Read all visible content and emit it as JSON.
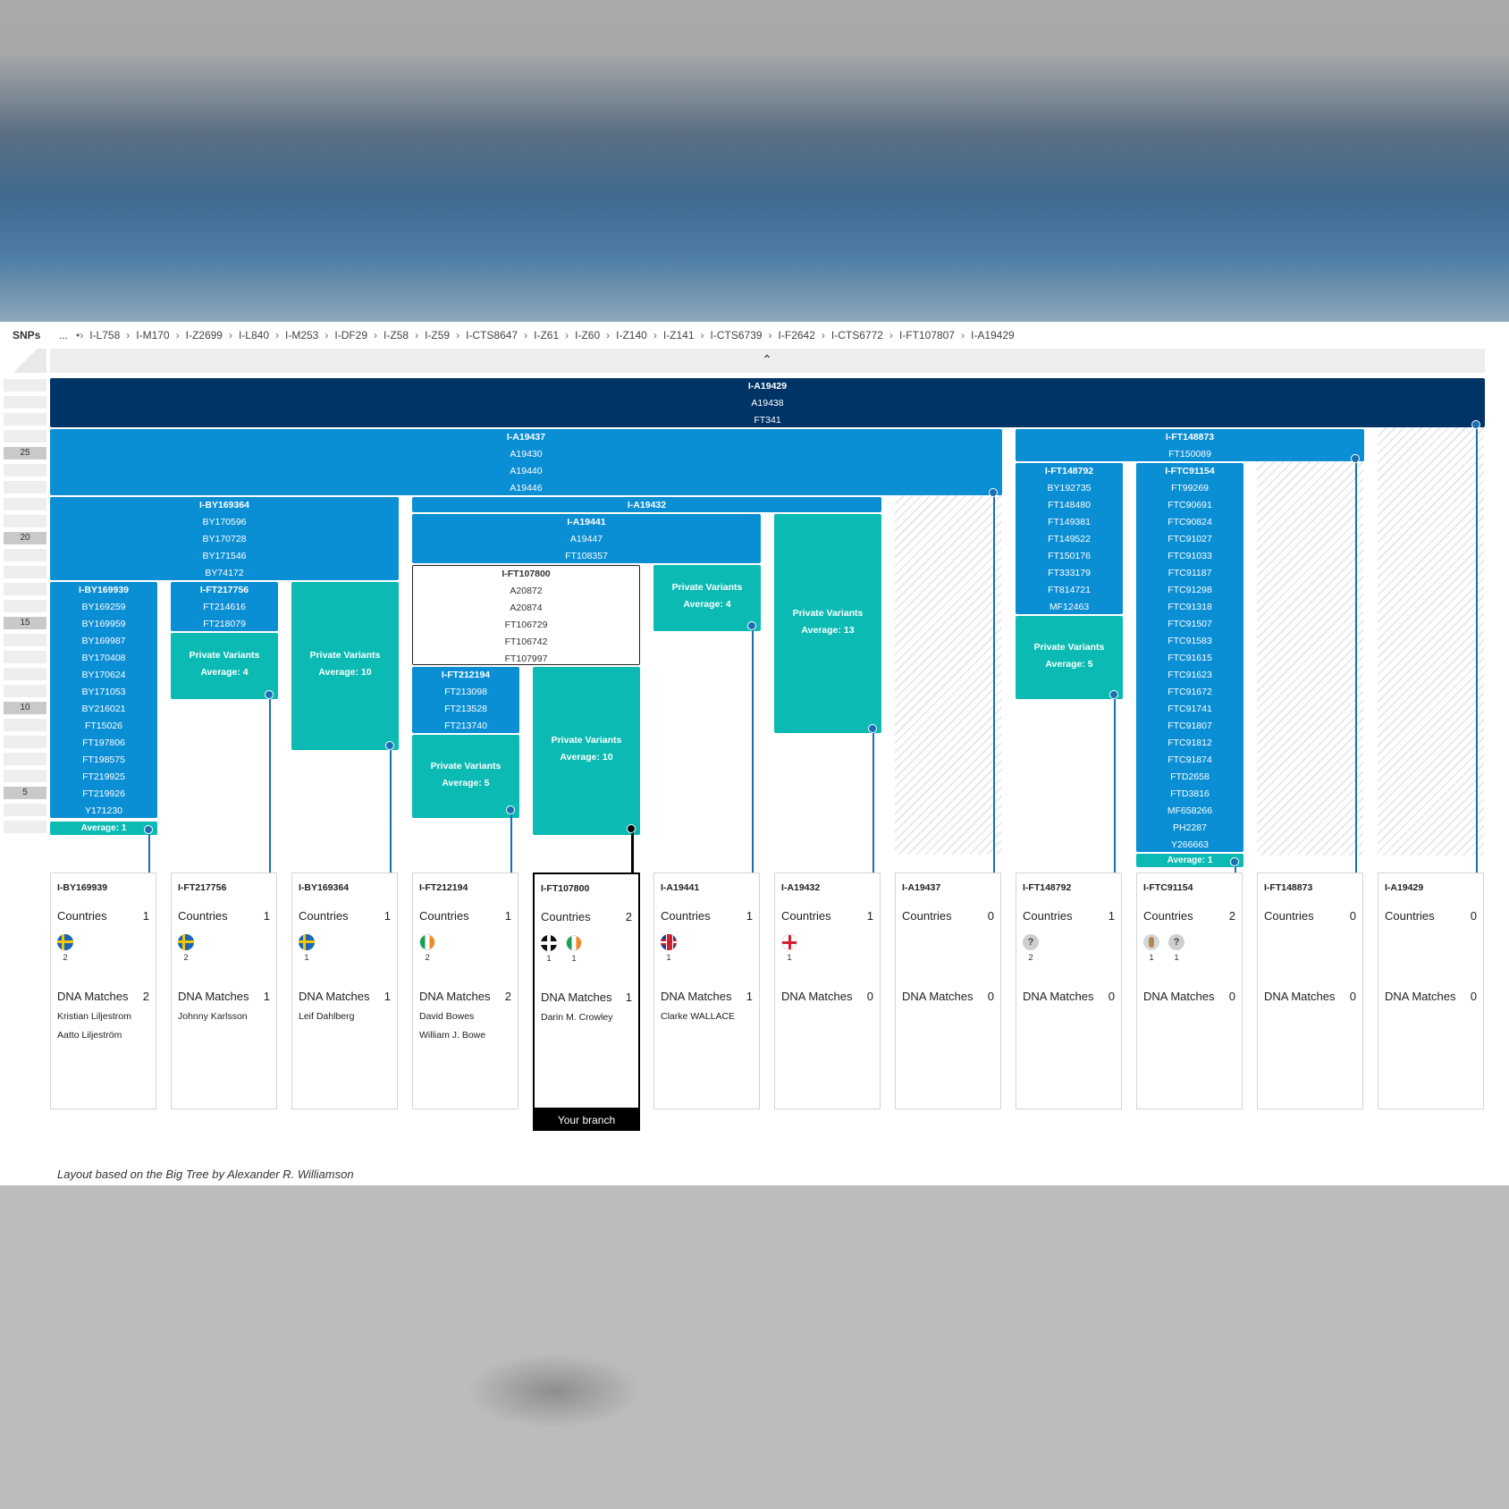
{
  "header": {
    "snps_label": "SNPs",
    "breadcrumb_start": "...",
    "breadcrumb": [
      "I-L758",
      "I-M170",
      "I-Z2699",
      "I-L840",
      "I-M253",
      "I-DF29",
      "I-Z58",
      "I-Z59",
      "I-CTS8647",
      "I-Z61",
      "I-Z60",
      "I-Z140",
      "I-Z141",
      "I-CTS6739",
      "I-F2642",
      "I-CTS6772",
      "I-FT107807",
      "I-A19429"
    ],
    "collapse_icon": "chevron-up-icon"
  },
  "ruler": {
    "labels": [
      "25",
      "20",
      "15",
      "10",
      "5"
    ]
  },
  "blocks": {
    "root": [
      "I-A19429",
      "A19438",
      "FT341"
    ],
    "a19437": [
      "I-A19437",
      "A19430",
      "A19440",
      "A19446"
    ],
    "ft148873": [
      "I-FT148873",
      "FT150089"
    ],
    "by169364": [
      "I-BY169364",
      "BY170596",
      "BY170728",
      "BY171546",
      "BY74172"
    ],
    "a19432": [
      "I-A19432"
    ],
    "a19441": [
      "I-A19441",
      "A19447",
      "FT108357"
    ],
    "ft148792": [
      "I-FT148792",
      "BY192735",
      "FT148480",
      "FT149381",
      "FT149522",
      "FT150176",
      "FT333179",
      "FT814721",
      "MF12463"
    ],
    "ftc91154": [
      "I-FTC91154",
      "FT99269",
      "FTC90691",
      "FTC90824",
      "FTC91027",
      "FTC91033",
      "FTC91187",
      "FTC91298",
      "FTC91318",
      "FTC91507",
      "FTC91583",
      "FTC91615",
      "FTC91623",
      "FTC91672",
      "FTC91741",
      "FTC91807",
      "FTC91812",
      "FTC91874",
      "FTD2658",
      "FTD3816",
      "MF658266",
      "PH2287",
      "Y266663"
    ],
    "by169939": [
      "I-BY169939",
      "BY169259",
      "BY169959",
      "BY169987",
      "BY170408",
      "BY170624",
      "BY171053",
      "BY216021",
      "FT15026",
      "FT197806",
      "FT198575",
      "FT219925",
      "FT219926",
      "Y171230"
    ],
    "ft217756": [
      "I-FT217756",
      "FT214616",
      "FT218079"
    ],
    "ft107800": [
      "I-FT107800",
      "A20872",
      "A20874",
      "FT106729",
      "FT106742",
      "FT107997"
    ],
    "ft212194": [
      "I-FT212194",
      "FT213098",
      "FT213528",
      "FT213740"
    ]
  },
  "private_variants": {
    "title": "Private Variants",
    "ft217756": "Average: 4",
    "by169364": "Average: 10",
    "a19441": "Average: 4",
    "a19432": "Average: 13",
    "ft148792": "Average: 5",
    "ft212194": "Average: 5",
    "ft107800": "Average: 10"
  },
  "averages": {
    "by169939": "Average: 1",
    "ftc91154": "Average: 1"
  },
  "cards": [
    {
      "title": "I-BY169939",
      "countries": "1",
      "flags": [
        {
          "icon": "sweden-flag-icon",
          "count": "2"
        }
      ],
      "matches": "2",
      "names": [
        "Kristian Liljestrom",
        "Aatto Liljeström"
      ]
    },
    {
      "title": "I-FT217756",
      "countries": "1",
      "flags": [
        {
          "icon": "sweden-flag-icon",
          "count": "2"
        }
      ],
      "matches": "1",
      "names": [
        "Johnny Karlsson"
      ]
    },
    {
      "title": "I-BY169364",
      "countries": "1",
      "flags": [
        {
          "icon": "sweden-flag-icon",
          "count": "1"
        }
      ],
      "matches": "1",
      "names": [
        "Leif Dahlberg"
      ]
    },
    {
      "title": "I-FT212194",
      "countries": "1",
      "flags": [
        {
          "icon": "ireland-flag-icon",
          "count": "2"
        }
      ],
      "matches": "2",
      "names": [
        "David Bowes",
        "William J. Bowe"
      ]
    },
    {
      "title": "I-FT107800",
      "countries": "2",
      "flags": [
        {
          "icon": "cornwall-flag-icon",
          "count": "1"
        },
        {
          "icon": "ireland-flag-icon",
          "count": "1"
        }
      ],
      "matches": "1",
      "names": [
        "Darin M. Crowley"
      ]
    },
    {
      "title": "I-A19441",
      "countries": "1",
      "flags": [
        {
          "icon": "uk-flag-icon",
          "count": "1"
        }
      ],
      "matches": "1",
      "names": [
        "Clarke WALLACE"
      ]
    },
    {
      "title": "I-A19432",
      "countries": "1",
      "flags": [
        {
          "icon": "england-flag-icon",
          "count": "1"
        }
      ],
      "matches": "0",
      "names": []
    },
    {
      "title": "I-A19437",
      "countries": "0",
      "flags": [],
      "matches": "0",
      "names": []
    },
    {
      "title": "I-FT148792",
      "countries": "1",
      "flags": [
        {
          "icon": "unknown-flag-icon",
          "count": "2"
        }
      ],
      "matches": "0",
      "names": []
    },
    {
      "title": "I-FTC91154",
      "countries": "2",
      "flags": [
        {
          "icon": "quill-flag-icon",
          "count": "1"
        },
        {
          "icon": "unknown-flag-icon",
          "count": "1"
        }
      ],
      "matches": "0",
      "names": []
    },
    {
      "title": "I-FT148873",
      "countries": "0",
      "flags": [],
      "matches": "0",
      "names": []
    },
    {
      "title": "I-A19429",
      "countries": "0",
      "flags": [],
      "matches": "0",
      "names": []
    }
  ],
  "card_labels": {
    "countries": "Countries",
    "dna_matches": "DNA Matches",
    "unknown_mark": "?"
  },
  "your_branch": "Your branch",
  "footnote": "Layout based on the Big Tree by Alexander R. Williamson",
  "colors": {
    "root": "#003366",
    "branch": "#0a8ed4",
    "private": "#0bbbb3",
    "line": "#1a6fb0"
  }
}
